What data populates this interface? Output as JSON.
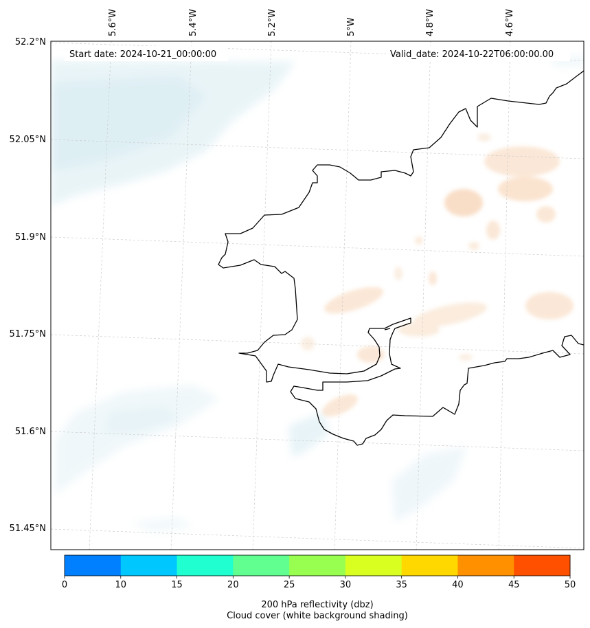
{
  "map": {
    "start_date": "Start date: 2024-10-21_00:00:00",
    "valid_date": "Valid_date: 2024-10-22T06:00:00.00",
    "lat_labels": [
      "52.2°N",
      "52.05°N",
      "51.9°N",
      "51.75°N",
      "51.6°N",
      "51.45°N"
    ],
    "lon_labels": [
      "5.6°W",
      "5.4°W",
      "5.2°W",
      "5°W",
      "4.8°W",
      "4.6°W"
    ]
  },
  "colorbar": {
    "ticks": [
      "0",
      "10",
      "15",
      "20",
      "25",
      "30",
      "35",
      "40",
      "45",
      "50"
    ],
    "colors": [
      "#0080ff",
      "#00c8ff",
      "#20ffd0",
      "#60ff90",
      "#98ff50",
      "#d8ff20",
      "#ffd800",
      "#ff9000",
      "#ff5000"
    ],
    "title_line1": "200 hPa reflectivity (dbz)",
    "title_line2": "Cloud cover (white background shading)"
  },
  "style": {
    "coastline_color": "#000000",
    "cloud_shading_color": "#d8ecf2",
    "reflectivity_shading_color": "#f8d8bc",
    "grid_color": "#cccccc"
  }
}
